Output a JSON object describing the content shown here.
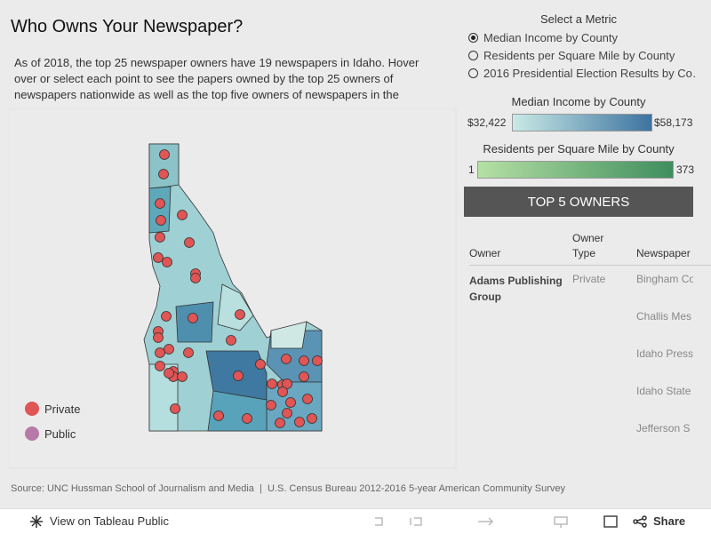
{
  "header": {
    "title": "Who Owns Your Newspaper?",
    "description": "As of 2018, the top 25 newspaper owners have 19 newspapers in Idaho. Hover over or select each point to see the papers owned by the top 25 owners of newspapers nationwide as well as the top five owners of newspapers in the"
  },
  "metric_selector": {
    "title": "Select a Metric",
    "options": [
      "Median Income by County",
      "Residents per Square Mile by County",
      "2016 Presidential Election Results by Co…"
    ]
  },
  "legends": [
    {
      "title": "Median Income by County",
      "min": "$32,422",
      "max": "$58,173"
    },
    {
      "title": "Residents per Square Mile by County",
      "min": "1",
      "max": "373"
    }
  ],
  "owner_legend": [
    "Private",
    "Public"
  ],
  "owners_panel": {
    "title": "TOP 5 OWNERS",
    "columns": [
      "Owner",
      "Owner Type",
      "Newspaper"
    ],
    "rows": [
      {
        "owner": "Adams Publishing Group",
        "type": "Private",
        "newspapers": [
          "Bingham Co",
          "Challis Mes",
          "Idaho Press",
          "Idaho State",
          "Jefferson S"
        ]
      }
    ]
  },
  "source": "Source: UNC Hussman School of Journalism and Media  |  U.S. Census Bureau 2012-2016 5-year American Community Survey",
  "toolbar": {
    "view": "View on Tableau Public",
    "share": "Share"
  }
}
